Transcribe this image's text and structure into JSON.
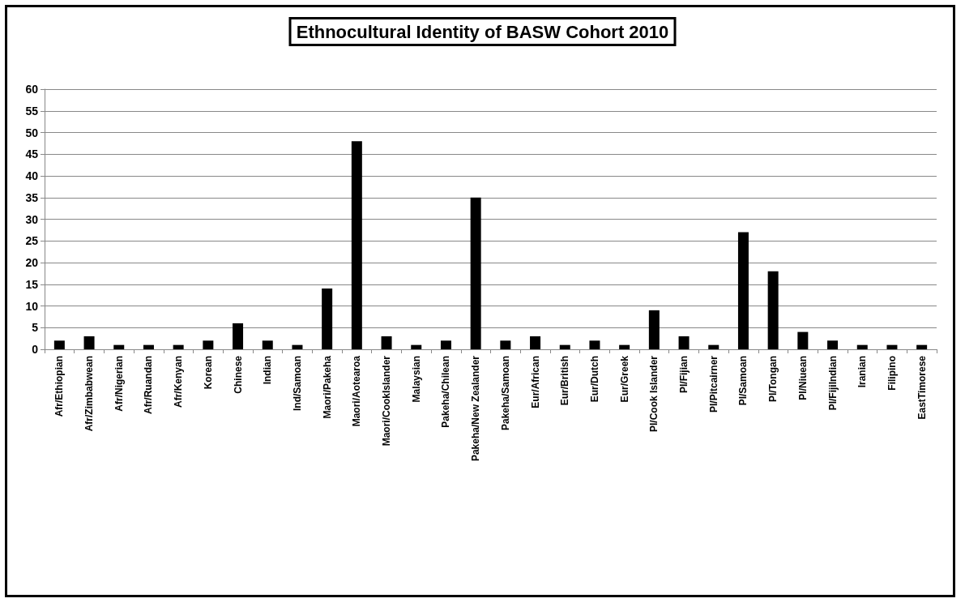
{
  "chart_data": {
    "type": "bar",
    "title": "Ethnocultural Identity of BASW Cohort 2010",
    "categories": [
      "Afr/Ethiopian",
      "Afr/Zimbabwean",
      "Afr/Nigerian",
      "Afr/Ruandan",
      "Afr/Kenyan",
      "Korean",
      "Chinese",
      "Indian",
      "Ind/Samoan",
      "Maori/Pakeha",
      "Maori/Aotearoa",
      "Maori/CookIslander",
      "Malaysian",
      "Pakeha/Chilean",
      "Pakeha/New Zealander",
      "Pakeha/Samoan",
      "Eur/African",
      "Eur/British",
      "Eur/Dutch",
      "Eur/Greek",
      "PI/Cook Islander",
      "PI/Fijian",
      "PI/Pitcairner",
      "PI/Samoan",
      "PI/Tongan",
      "PI/Niuean",
      "PI/FijiIndian",
      "Iranian",
      "Filipino",
      "EastTimorese"
    ],
    "values": [
      2,
      3,
      1,
      1,
      1,
      2,
      6,
      2,
      1,
      14,
      48,
      3,
      1,
      2,
      35,
      2,
      3,
      1,
      2,
      1,
      9,
      3,
      1,
      27,
      18,
      4,
      2,
      1,
      1,
      1
    ],
    "color": "#000000",
    "ylim": [
      0,
      60
    ],
    "yticks": [
      0,
      5,
      10,
      15,
      20,
      25,
      30,
      35,
      40,
      45,
      50,
      55,
      60
    ],
    "grid": "y"
  }
}
